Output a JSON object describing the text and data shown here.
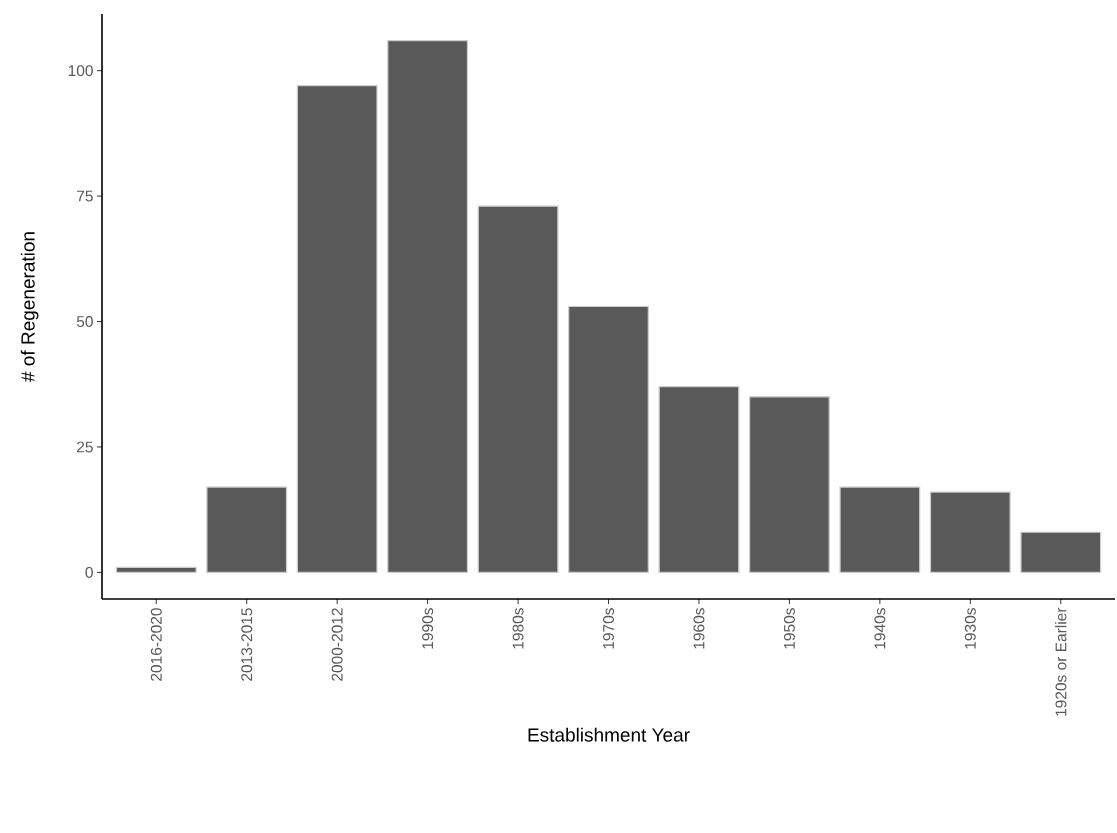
{
  "chart_data": {
    "type": "bar",
    "xlabel": "Establishment Year",
    "ylabel": "# of Regeneration",
    "categories": [
      "2016-2020",
      "2013-2015",
      "2000-2012",
      "1990s",
      "1980s",
      "1970s",
      "1960s",
      "1950s",
      "1940s",
      "1930s",
      "1920s or Earlier"
    ],
    "values": [
      1,
      17,
      97,
      106,
      73,
      53,
      37,
      35,
      17,
      16,
      8
    ],
    "color": "#595959",
    "ylim": [
      -5.3,
      111.3
    ],
    "yticks": [
      0,
      25,
      50,
      75,
      100
    ],
    "grid": false
  }
}
